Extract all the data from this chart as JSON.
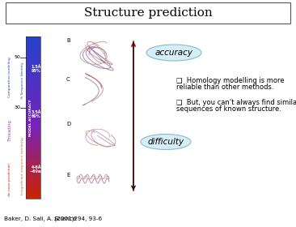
{
  "title": "Structure prediction",
  "title_fontsize": 11,
  "background_color": "#ffffff",
  "bullet1_line1": "❑  Homology modelling is more",
  "bullet1_line2": "reliable than other methods.",
  "bullet2_line1": "❑  But, you can’t always find similar",
  "bullet2_line2": "sequences of known structure.",
  "citation_pre": "Baker, D. Sali, A. (2001). ",
  "citation_italic": "Science",
  "citation_post": " 294, 93-6",
  "accuracy_label": "accuracy",
  "difficulty_label": "difficulty",
  "bar_blue_top": "#2244bb",
  "bar_mid": "#8833aa",
  "bar_red_bottom": "#cc2200",
  "label_comparative_color": "#2244bb",
  "label_threading_color": "#aa44aa",
  "label_denovo_color": "#cc2200",
  "label_seqid_color": "#2244bb",
  "label_insig_color": "#cc6633",
  "ellipse_face": "#d6eef5",
  "ellipse_edge": "#88bbcc",
  "arrow_black": "#111111",
  "arrow_red": "#cc0000",
  "text_color": "#222222"
}
